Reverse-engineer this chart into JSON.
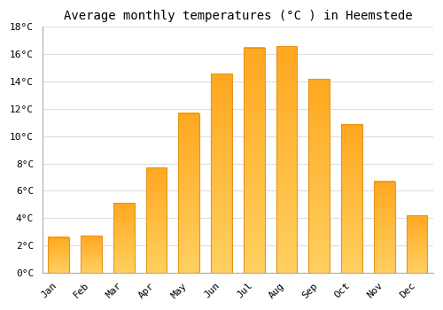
{
  "title": "Average monthly temperatures (°C ) in Heemstede",
  "months": [
    "Jan",
    "Feb",
    "Mar",
    "Apr",
    "May",
    "Jun",
    "Jul",
    "Aug",
    "Sep",
    "Oct",
    "Nov",
    "Dec"
  ],
  "temperatures": [
    2.6,
    2.7,
    5.1,
    7.7,
    11.7,
    14.6,
    16.5,
    16.6,
    14.2,
    10.9,
    6.7,
    4.2
  ],
  "bar_color_fill": "#FFB830",
  "bar_color_edge": "#E8941A",
  "background_color": "#FFFFFF",
  "grid_color": "#DDDDDD",
  "ylim": [
    0,
    18
  ],
  "yticks": [
    0,
    2,
    4,
    6,
    8,
    10,
    12,
    14,
    16,
    18
  ],
  "ytick_labels": [
    "0°C",
    "2°C",
    "4°C",
    "6°C",
    "8°C",
    "10°C",
    "12°C",
    "14°C",
    "16°C",
    "18°C"
  ],
  "title_fontsize": 10,
  "tick_fontsize": 8,
  "font_family": "monospace",
  "bar_width": 0.65,
  "figsize": [
    5.0,
    3.5
  ],
  "dpi": 100
}
